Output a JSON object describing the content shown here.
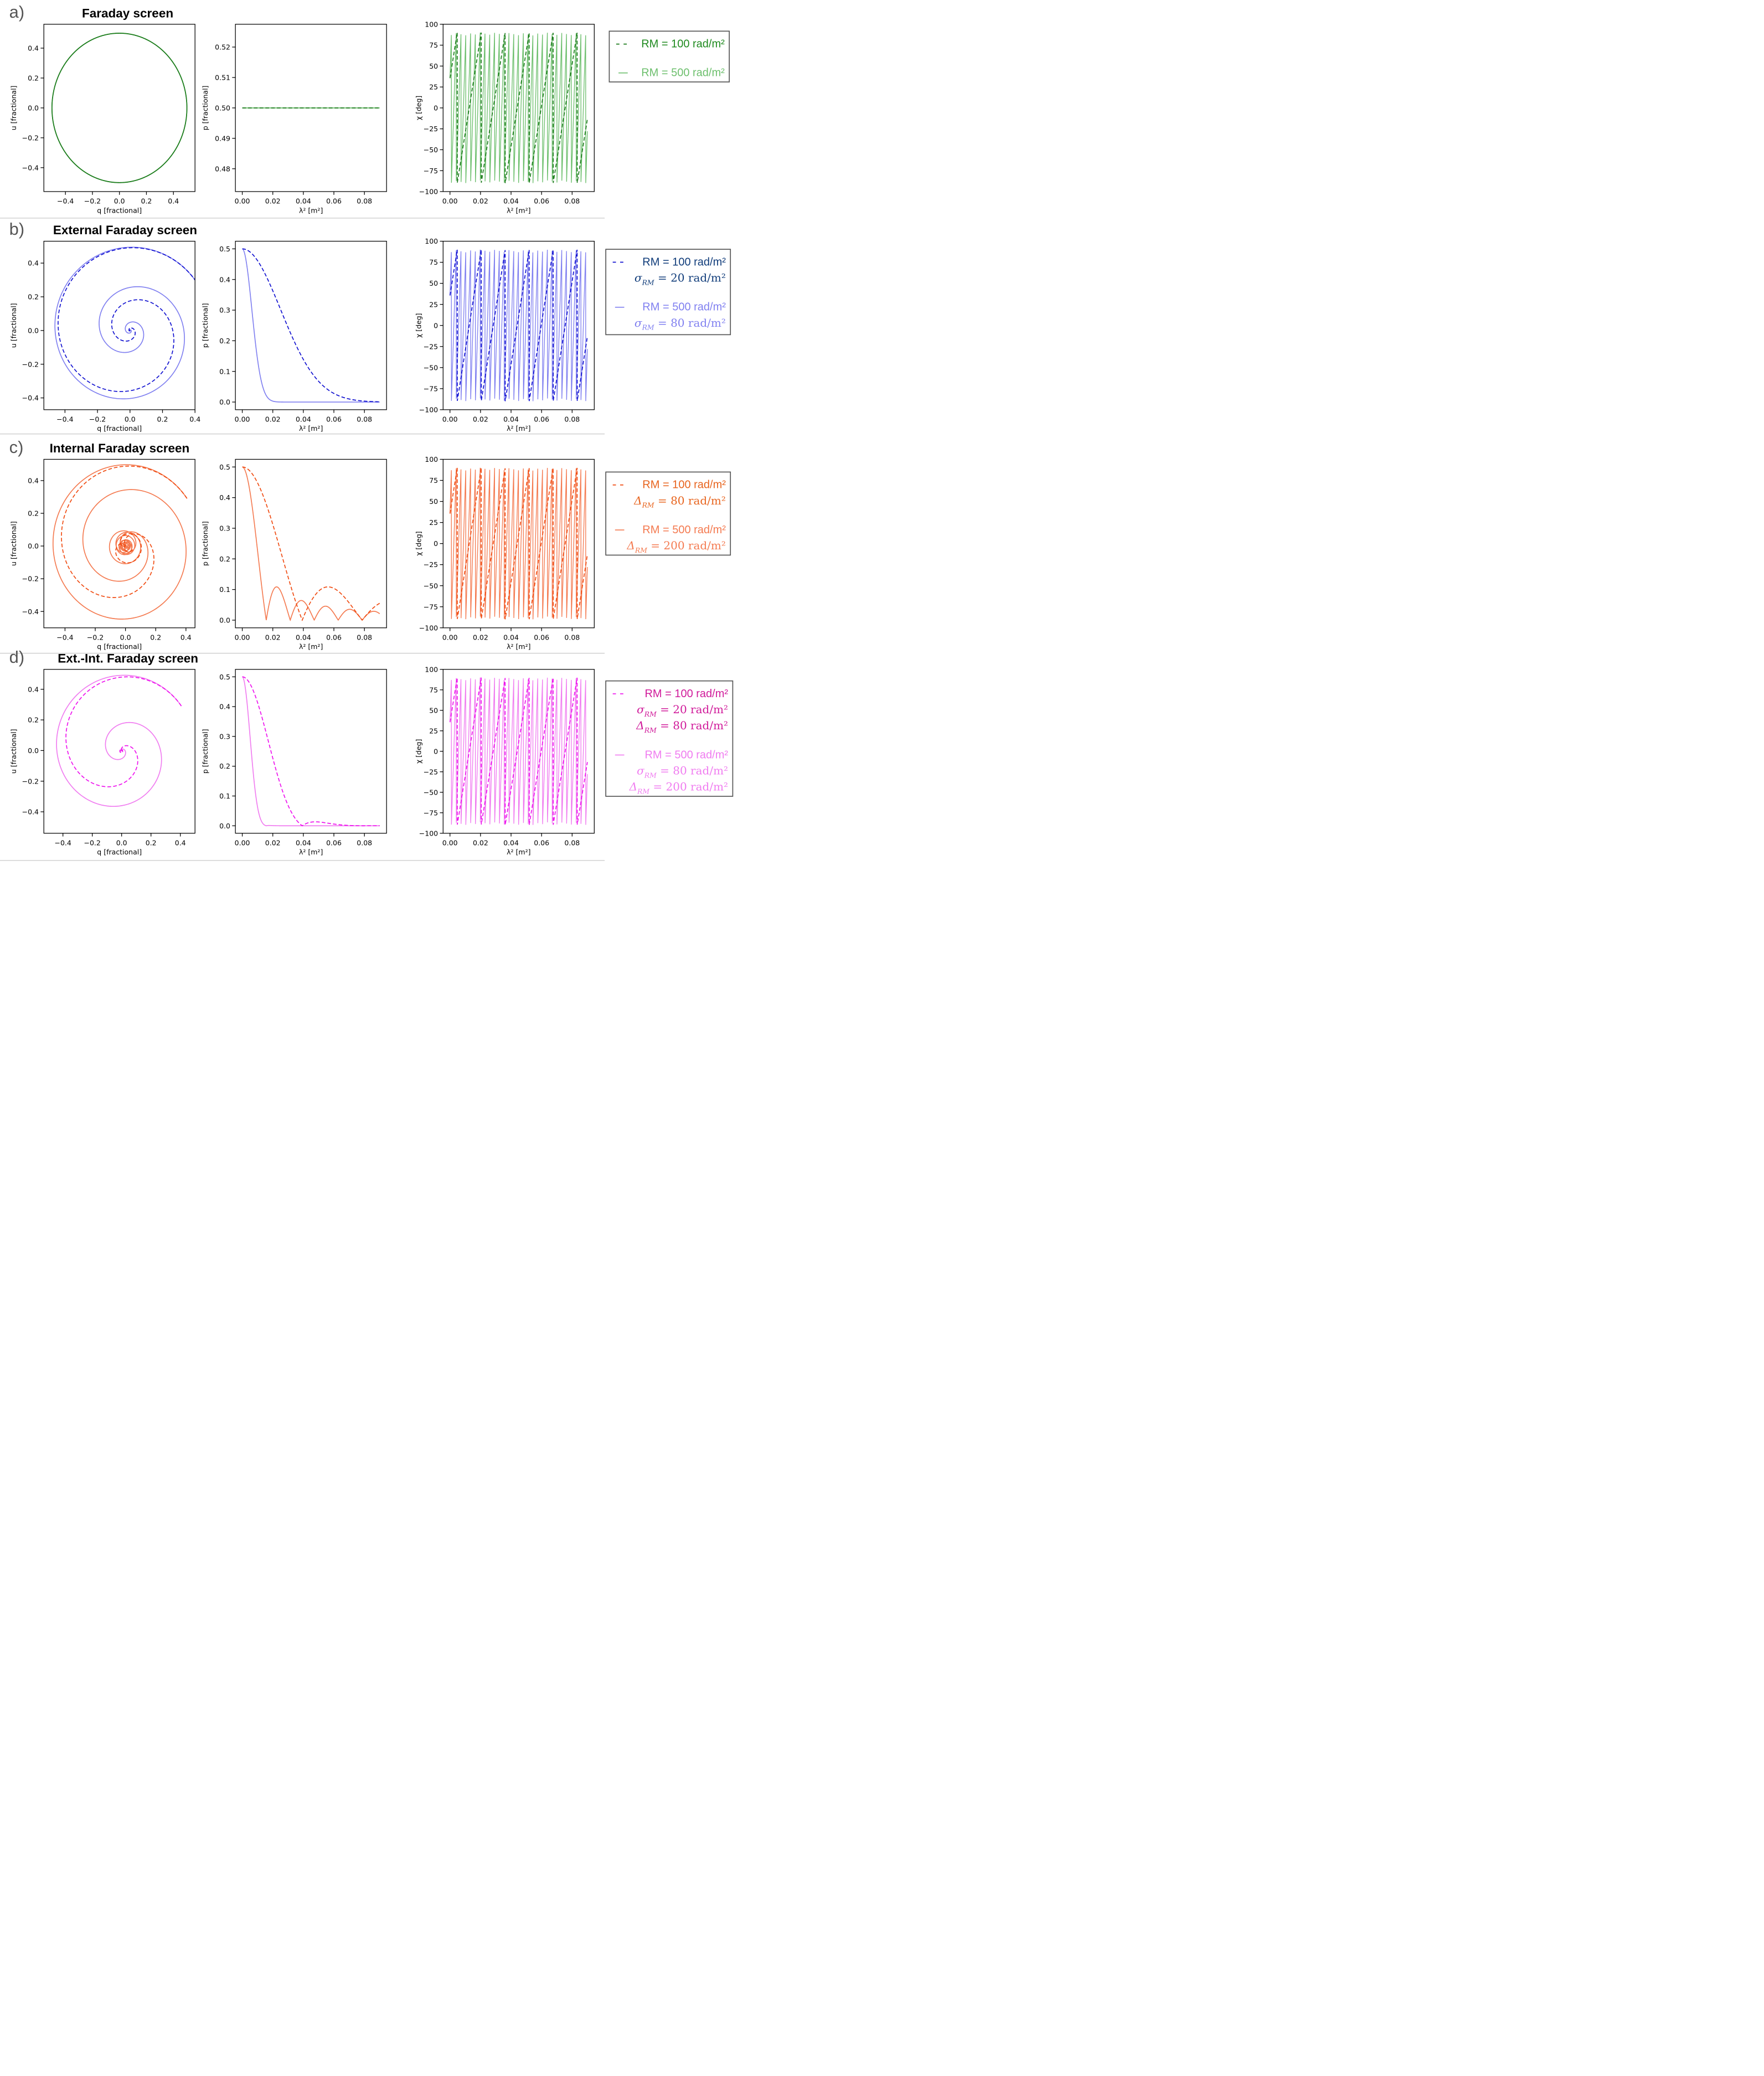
{
  "chart_data": [
    {
      "panel": "a)",
      "title": "Faraday screen",
      "type": "line",
      "model": "faraday",
      "colors": {
        "rm100": "#1a7a1a",
        "rm500": "#6dbf6d",
        "legend_text": "#1f8a1f"
      },
      "series": [
        {
          "rm": 100,
          "sigma": 0,
          "delta": 0,
          "style": "dashed",
          "role": "rm100"
        },
        {
          "rm": 500,
          "sigma": 0,
          "delta": 0,
          "style": "solid",
          "role": "rm500"
        }
      ],
      "legend": [
        {
          "marker": "- -",
          "lines": [
            "RM = 100 rad/m²"
          ]
        },
        {
          "marker": "—",
          "lines": [
            "RM = 500 rad/m²"
          ]
        }
      ],
      "qu": {
        "xlabel": "q [fractional]",
        "ylabel": "u [fractional]",
        "xlim": [
          -0.56,
          0.56
        ],
        "ylim": [
          -0.56,
          0.56
        ],
        "xticks": [
          "−0.4",
          "−0.2",
          "0.0",
          "0.2",
          "0.4"
        ],
        "xtick_values": [
          -0.4,
          -0.2,
          0.0,
          0.2,
          0.4
        ],
        "yticks": [
          "0.4",
          "0.2",
          "0.0",
          "−0.2",
          "−0.4"
        ],
        "ytick_values": [
          0.4,
          0.2,
          0.0,
          -0.2,
          -0.4
        ]
      },
      "p": {
        "xlabel": "λ² [m²]",
        "ylabel": "p [fractional]",
        "xlim": [
          -0.0045,
          0.0945
        ],
        "ylim": [
          0.4725,
          0.5275
        ],
        "xticks": [
          "0.00",
          "0.02",
          "0.04",
          "0.06",
          "0.08"
        ],
        "xtick_values": [
          0,
          0.02,
          0.04,
          0.06,
          0.08
        ],
        "yticks": [
          "0.52",
          "0.51",
          "0.50",
          "0.49",
          "0.48"
        ],
        "ytick_values": [
          0.52,
          0.51,
          0.5,
          0.49,
          0.48
        ]
      },
      "chi": {
        "xlabel": "λ² [m²]",
        "ylabel": "χ [deg]",
        "xlim": [
          -0.0045,
          0.0945
        ],
        "ylim": [
          -100,
          100
        ],
        "xticks": [
          "0.00",
          "0.02",
          "0.04",
          "0.06",
          "0.08"
        ],
        "xtick_values": [
          0,
          0.02,
          0.04,
          0.06,
          0.08
        ],
        "yticks": [
          "100",
          "75",
          "50",
          "25",
          "0",
          "−25",
          "−50",
          "−75",
          "−100"
        ],
        "ytick_values": [
          100,
          75,
          50,
          25,
          0,
          -25,
          -50,
          -75,
          -100
        ]
      }
    },
    {
      "panel": "b)",
      "title": "External Faraday screen",
      "type": "line",
      "model": "external",
      "colors": {
        "rm100": "#1010d0",
        "rm500": "#8080f0",
        "legend_text": "#103c7a"
      },
      "series": [
        {
          "rm": 100,
          "sigma": 20,
          "delta": 0,
          "style": "dashed",
          "role": "rm100"
        },
        {
          "rm": 500,
          "sigma": 80,
          "delta": 0,
          "style": "solid",
          "role": "rm500"
        }
      ],
      "legend": [
        {
          "marker": "-   -",
          "lines": [
            "RM = 100 rad/m²",
            "σ_RM = 20 rad/m²"
          ]
        },
        {
          "marker": "—",
          "lines": [
            "RM = 500 rad/m²",
            "σ_RM = 80 rad/m²"
          ]
        }
      ],
      "qu": {
        "xlabel": "q [fractional]",
        "ylabel": "u [fractional]",
        "xlim": [
          -0.53,
          0.4
        ],
        "ylim": [
          -0.47,
          0.53
        ],
        "xticks": [
          "−0.4",
          "−0.2",
          "0.0",
          "0.2",
          "0.4"
        ],
        "xtick_values": [
          -0.4,
          -0.2,
          0.0,
          0.2,
          0.4
        ],
        "yticks": [
          "0.4",
          "0.2",
          "0.0",
          "−0.2",
          "−0.4"
        ],
        "ytick_values": [
          0.4,
          0.2,
          0.0,
          -0.2,
          -0.4
        ]
      },
      "p": {
        "xlabel": "λ² [m²]",
        "ylabel": "p [fractional]",
        "xlim": [
          -0.0045,
          0.0945
        ],
        "ylim": [
          -0.025,
          0.525
        ],
        "xticks": [
          "0.00",
          "0.02",
          "0.04",
          "0.06",
          "0.08"
        ],
        "xtick_values": [
          0,
          0.02,
          0.04,
          0.06,
          0.08
        ],
        "yticks": [
          "0.5",
          "0.4",
          "0.3",
          "0.2",
          "0.1",
          "0.0"
        ],
        "ytick_values": [
          0.5,
          0.4,
          0.3,
          0.2,
          0.1,
          0.0
        ]
      },
      "chi": {
        "xlabel": "λ² [m²]",
        "ylabel": "χ [deg]",
        "xlim": [
          -0.0045,
          0.0945
        ],
        "ylim": [
          -100,
          100
        ],
        "xticks": [
          "0.00",
          "0.02",
          "0.04",
          "0.06",
          "0.08"
        ],
        "xtick_values": [
          0,
          0.02,
          0.04,
          0.06,
          0.08
        ],
        "yticks": [
          "100",
          "75",
          "50",
          "25",
          "0",
          "−25",
          "−50",
          "−75",
          "−100"
        ],
        "ytick_values": [
          100,
          75,
          50,
          25,
          0,
          -25,
          -50,
          -75,
          -100
        ]
      }
    },
    {
      "panel": "c)",
      "title": "Internal Faraday screen",
      "type": "line",
      "model": "internal",
      "colors": {
        "rm100": "#f04a10",
        "rm500": "#f47a50",
        "legend_text": "#e8641e"
      },
      "series": [
        {
          "rm": 100,
          "sigma": 0,
          "delta": 80,
          "style": "dashed",
          "role": "rm100"
        },
        {
          "rm": 500,
          "sigma": 0,
          "delta": 200,
          "style": "solid",
          "role": "rm500"
        }
      ],
      "legend": [
        {
          "marker": "-   -",
          "lines": [
            "RM = 100 rad/m²",
            "Δ_RM = 80 rad/m²"
          ]
        },
        {
          "marker": "—",
          "lines": [
            "RM = 500 rad/m²",
            "Δ_RM = 200 rad/m²"
          ]
        }
      ],
      "qu": {
        "xlabel": "q [fractional]",
        "ylabel": "u [fractional]",
        "xlim": [
          -0.54,
          0.46
        ],
        "ylim": [
          -0.5,
          0.53
        ],
        "xticks": [
          "−0.4",
          "−0.2",
          "0.0",
          "0.2",
          "0.4"
        ],
        "xtick_values": [
          -0.4,
          -0.2,
          0.0,
          0.2,
          0.4
        ],
        "yticks": [
          "0.4",
          "0.2",
          "0.0",
          "−0.2",
          "−0.4"
        ],
        "ytick_values": [
          0.4,
          0.2,
          0.0,
          -0.2,
          -0.4
        ]
      },
      "p": {
        "xlabel": "λ² [m²]",
        "ylabel": "p [fractional]",
        "xlim": [
          -0.0045,
          0.0945
        ],
        "ylim": [
          -0.025,
          0.525
        ],
        "xticks": [
          "0.00",
          "0.02",
          "0.04",
          "0.06",
          "0.08"
        ],
        "xtick_values": [
          0,
          0.02,
          0.04,
          0.06,
          0.08
        ],
        "yticks": [
          "0.5",
          "0.4",
          "0.3",
          "0.2",
          "0.1",
          "0.0"
        ],
        "ytick_values": [
          0.5,
          0.4,
          0.3,
          0.2,
          0.1,
          0.0
        ]
      },
      "chi": {
        "xlabel": "λ² [m²]",
        "ylabel": "χ [deg]",
        "xlim": [
          -0.0045,
          0.0945
        ],
        "ylim": [
          -100,
          100
        ],
        "xticks": [
          "0.00",
          "0.02",
          "0.04",
          "0.06",
          "0.08"
        ],
        "xtick_values": [
          0,
          0.02,
          0.04,
          0.06,
          0.08
        ],
        "yticks": [
          "100",
          "75",
          "50",
          "25",
          "0",
          "−25",
          "−50",
          "−75",
          "−100"
        ],
        "ytick_values": [
          100,
          75,
          50,
          25,
          0,
          -25,
          -50,
          -75,
          -100
        ]
      }
    },
    {
      "panel": "d)",
      "title": "Ext.-Int. Faraday screen",
      "type": "line",
      "model": "extint",
      "colors": {
        "rm100": "#ee10ee",
        "rm500": "#f07cf0",
        "legend_text": "#d01a9a"
      },
      "series": [
        {
          "rm": 100,
          "sigma": 20,
          "delta": 80,
          "style": "dashed",
          "role": "rm100"
        },
        {
          "rm": 500,
          "sigma": 80,
          "delta": 200,
          "style": "solid",
          "role": "rm500"
        }
      ],
      "legend": [
        {
          "marker": "-   -",
          "lines": [
            "RM = 100 rad/m²",
            "σ_RM = 20 rad/m²",
            "Δ_RM = 80 rad/m²"
          ]
        },
        {
          "marker": "—",
          "lines": [
            "RM = 500 rad/m²",
            "σ_RM = 80 rad/m²",
            "Δ_RM = 200 rad/m²"
          ]
        }
      ],
      "qu": {
        "xlabel": "q [fractional]",
        "ylabel": "u [fractional]",
        "xlim": [
          -0.53,
          0.5
        ],
        "ylim": [
          -0.54,
          0.53
        ],
        "xticks": [
          "−0.4",
          "−0.2",
          "0.0",
          "0.2",
          "0.4"
        ],
        "xtick_values": [
          -0.4,
          -0.2,
          0.0,
          0.2,
          0.4
        ],
        "yticks": [
          "0.4",
          "0.2",
          "0.0",
          "−0.2",
          "−0.4"
        ],
        "ytick_values": [
          0.4,
          0.2,
          0.0,
          -0.2,
          -0.4
        ]
      },
      "p": {
        "xlabel": "λ² [m²]",
        "ylabel": "p [fractional]",
        "xlim": [
          -0.0045,
          0.0945
        ],
        "ylim": [
          -0.025,
          0.525
        ],
        "xticks": [
          "0.00",
          "0.02",
          "0.04",
          "0.06",
          "0.08"
        ],
        "xtick_values": [
          0,
          0.02,
          0.04,
          0.06,
          0.08
        ],
        "yticks": [
          "0.5",
          "0.4",
          "0.3",
          "0.2",
          "0.1",
          "0.0"
        ],
        "ytick_values": [
          0.5,
          0.4,
          0.3,
          0.2,
          0.1,
          0.0
        ]
      },
      "chi": {
        "xlabel": "λ² [m²]",
        "ylabel": "χ [deg]",
        "xlim": [
          -0.0045,
          0.0945
        ],
        "ylim": [
          -100,
          100
        ],
        "xticks": [
          "0.00",
          "0.02",
          "0.04",
          "0.06",
          "0.08"
        ],
        "xtick_values": [
          0,
          0.02,
          0.04,
          0.06,
          0.08
        ],
        "yticks": [
          "100",
          "75",
          "50",
          "25",
          "0",
          "−25",
          "−50",
          "−75",
          "−100"
        ],
        "ytick_values": [
          100,
          75,
          50,
          25,
          0,
          -25,
          -50,
          -75,
          -100
        ]
      }
    }
  ]
}
